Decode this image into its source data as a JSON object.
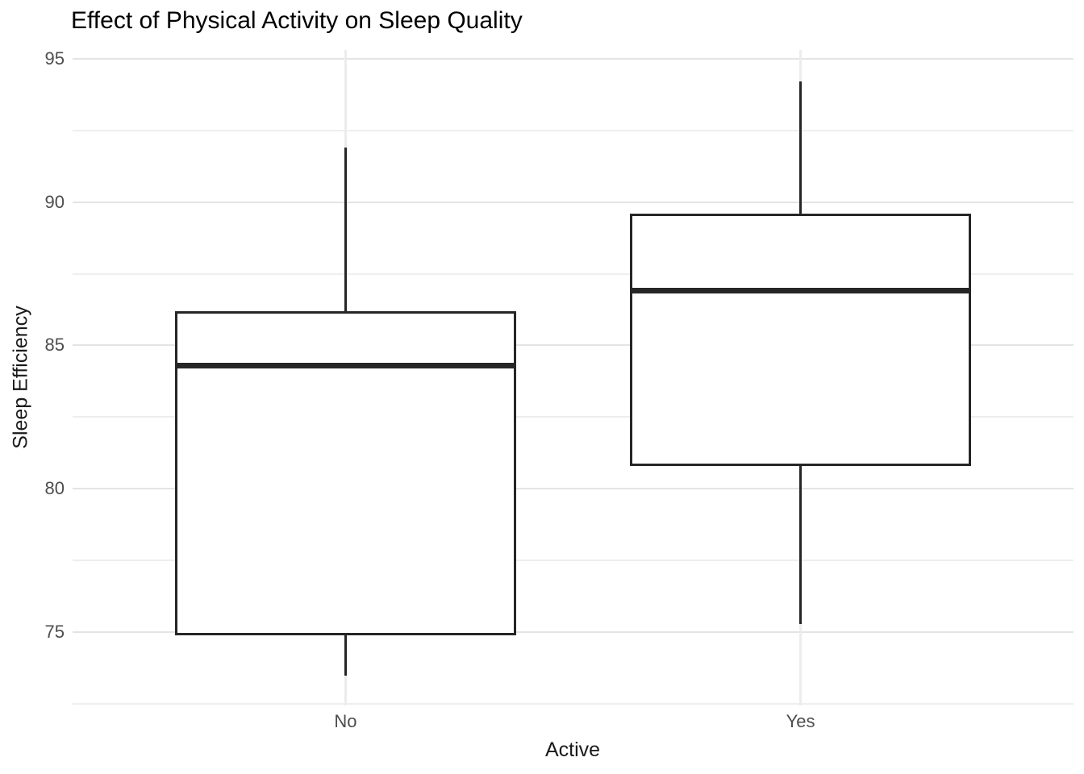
{
  "page_title": "Effect of Physical Activity on Sleep Quality",
  "chart_data": {
    "type": "boxplot",
    "title": "Effect of Physical Activity on Sleep Quality",
    "xlabel": "Active",
    "ylabel": "Sleep Efficiency",
    "categories": [
      "No",
      "Yes"
    ],
    "series": [
      {
        "category": "No",
        "whisker_low": 73.5,
        "q1": 74.9,
        "median": 84.3,
        "q3": 86.2,
        "whisker_high": 91.9
      },
      {
        "category": "Yes",
        "whisker_low": 75.3,
        "q1": 80.8,
        "median": 86.9,
        "q3": 89.6,
        "whisker_high": 94.2
      }
    ],
    "y_ticks_major": [
      75,
      80,
      85,
      90,
      95
    ],
    "y_ticks_minor": [
      72.5,
      77.5,
      82.5,
      87.5,
      92.5
    ],
    "ylim": [
      72.45,
      95.3
    ],
    "legend_position": "none",
    "grid": "horizontal major+minor, vertical major at categories",
    "colors": {
      "box_stroke": "#262626",
      "box_fill": "#ffffff",
      "grid_major": "#e4e4e4",
      "grid_minor": "#eeeeee",
      "grid_vertical": "#ececec",
      "tick_label": "#4d4d4d",
      "title_text": "#000000",
      "background": "#ffffff"
    }
  }
}
